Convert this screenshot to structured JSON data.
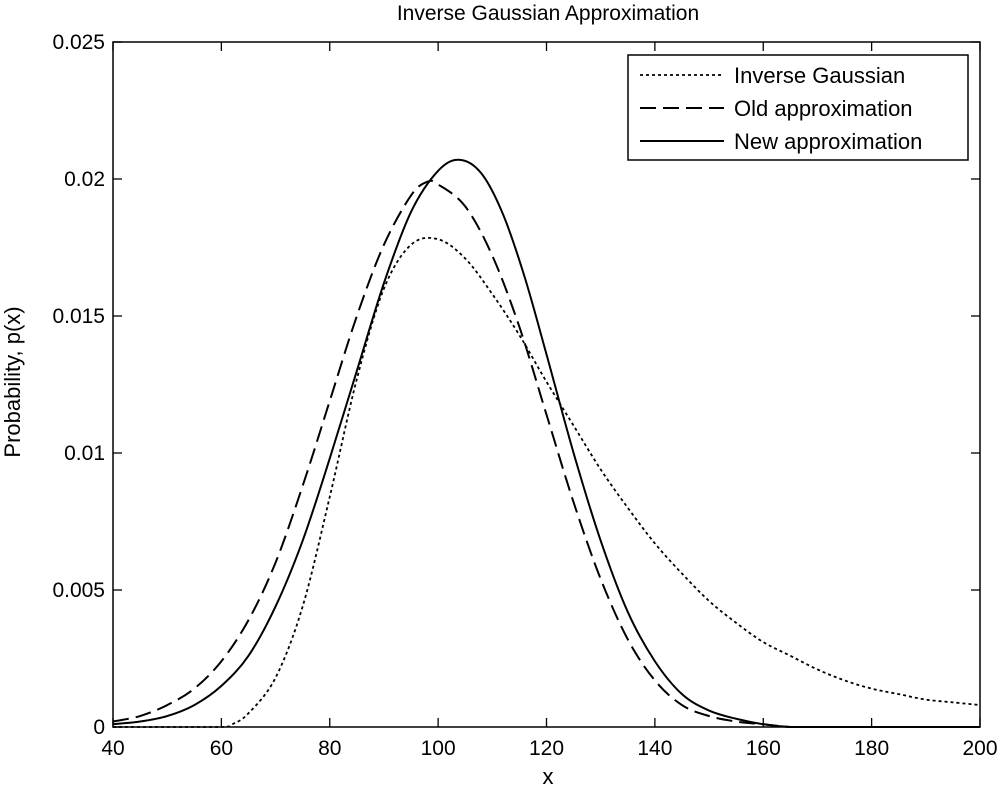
{
  "chart_data": {
    "type": "line",
    "title": "Inverse Gaussian Approximation",
    "xlabel": "x",
    "ylabel": "Probability, p(x)",
    "xlim": [
      40,
      200
    ],
    "ylim": [
      0,
      0.025
    ],
    "xticks": [
      40,
      60,
      80,
      100,
      120,
      140,
      160,
      180,
      200
    ],
    "xtick_labels": [
      "40",
      "60",
      "80",
      "100",
      "120",
      "140",
      "160",
      "180",
      "200"
    ],
    "yticks": [
      0,
      0.005,
      0.01,
      0.015,
      0.02,
      0.025
    ],
    "ytick_labels": [
      "0",
      "0.005",
      "0.01",
      "0.015",
      "0.02",
      "0.025"
    ],
    "grid": false,
    "legend_position": "top-right",
    "series": [
      {
        "name": "Inverse Gaussian",
        "style": "dotted",
        "color": "#000000",
        "x": [
          40,
          50,
          60,
          62,
          65,
          70,
          75,
          80,
          85,
          90,
          95,
          100,
          105,
          110,
          115,
          120,
          125,
          130,
          135,
          140,
          145,
          150,
          155,
          160,
          165,
          170,
          175,
          180,
          185,
          190,
          195,
          200
        ],
        "y": [
          0,
          0,
          0,
          0.0001,
          0.0005,
          0.0018,
          0.0044,
          0.0084,
          0.0127,
          0.016,
          0.0176,
          0.0178,
          0.0171,
          0.0158,
          0.0143,
          0.0126,
          0.011,
          0.0094,
          0.008,
          0.0067,
          0.0056,
          0.0046,
          0.0038,
          0.0031,
          0.0026,
          0.0021,
          0.0017,
          0.0014,
          0.0012,
          0.001,
          0.0009,
          0.0008
        ]
      },
      {
        "name": "Old approximation",
        "style": "dashed",
        "color": "#000000",
        "x": [
          40,
          45,
          50,
          55,
          60,
          65,
          70,
          75,
          80,
          85,
          90,
          95,
          98,
          100,
          105,
          110,
          115,
          120,
          125,
          130,
          135,
          140,
          145,
          150,
          155,
          160,
          165,
          170,
          175,
          180,
          190,
          200
        ],
        "y": [
          0.0002,
          0.0004,
          0.0008,
          0.0014,
          0.0024,
          0.0039,
          0.006,
          0.0088,
          0.0119,
          0.015,
          0.0176,
          0.0194,
          0.0199,
          0.0198,
          0.019,
          0.0172,
          0.0146,
          0.0114,
          0.0082,
          0.0054,
          0.0032,
          0.0017,
          0.0008,
          0.0004,
          0.0002,
          0.0001,
          0,
          0,
          0,
          0,
          0,
          0
        ]
      },
      {
        "name": "New approximation",
        "style": "solid",
        "color": "#000000",
        "x": [
          40,
          45,
          50,
          55,
          60,
          65,
          70,
          75,
          80,
          85,
          90,
          95,
          100,
          104,
          108,
          112,
          116,
          120,
          125,
          130,
          135,
          140,
          145,
          150,
          155,
          160,
          165,
          170,
          175,
          180,
          190,
          200
        ],
        "y": [
          0.0001,
          0.0002,
          0.0004,
          0.0008,
          0.0015,
          0.0026,
          0.0044,
          0.0068,
          0.0098,
          0.013,
          0.0162,
          0.0188,
          0.0203,
          0.0207,
          0.0202,
          0.0187,
          0.0164,
          0.0136,
          0.01,
          0.0068,
          0.0042,
          0.0024,
          0.0012,
          0.0006,
          0.0003,
          0.0001,
          0,
          0,
          0,
          0,
          0,
          0
        ]
      }
    ]
  }
}
